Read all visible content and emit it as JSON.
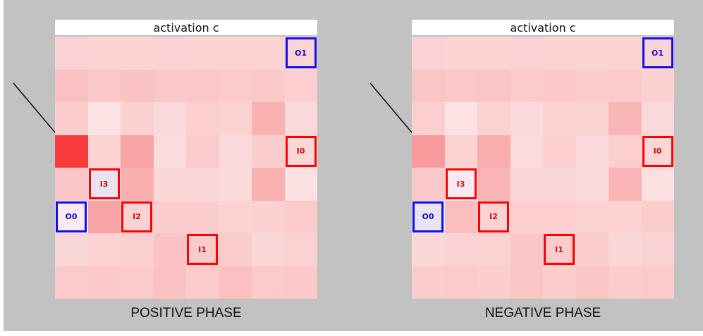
{
  "panels": [
    {
      "id": "positive",
      "title": "activation c",
      "phase_label": "POSITIVE PHASE",
      "cells": [
        [
          "#fbd2d3",
          "#fbd3d3",
          "#fbd3d3",
          "#fbd2d3",
          "#fbd3d3",
          "#fbd3d3",
          "#fbd3d3",
          "#fbd4d4"
        ],
        [
          "#fbc1c2",
          "#fbc7c8",
          "#fbc3c4",
          "#fbc8c9",
          "#fbc7c8",
          "#fbcbcb",
          "#fbc8c8",
          "#fbcfcf"
        ],
        [
          "#fbcdcd",
          "#fce3e3",
          "#fbd0d1",
          "#fbdadb",
          "#fbcfd0",
          "#fbd1d2",
          "#fab1b2",
          "#fbd9da"
        ],
        [
          "#f83b3b",
          "#fbd3d3",
          "#f9a4a5",
          "#fbdbdb",
          "#fbcccd",
          "#fbd9da",
          "#fbcdcd",
          "#fbd6d6"
        ],
        [
          "#fbc6c7",
          "#e9e3f2",
          "#f9afb0",
          "#fbd7d8",
          "#fbd7d7",
          "#fbdada",
          "#f9b0b1",
          "#fbe1e1"
        ],
        [
          "#f8eaf0",
          "#f9a5a6",
          "#fbd2d3",
          "#fbcdcd",
          "#fbcdce",
          "#fbd2d2",
          "#fbd0d1",
          "#fbcacb"
        ],
        [
          "#fbd8d8",
          "#fbd1d2",
          "#fbd0d1",
          "#fbc3c4",
          "#fbcaca",
          "#fbcccc",
          "#fbd6d6",
          "#fbd1d2"
        ],
        [
          "#fbcacb",
          "#fbc9c9",
          "#fbcbcc",
          "#fbc2c3",
          "#fbcbcc",
          "#fbc1c2",
          "#fbcbcc",
          "#fbc9c9"
        ]
      ],
      "boxes": [
        {
          "label": "O1",
          "kind": "output",
          "row": 0,
          "col": 7
        },
        {
          "label": "I0",
          "kind": "input",
          "row": 3,
          "col": 7
        },
        {
          "label": "I3",
          "kind": "input",
          "row": 4,
          "col": 1
        },
        {
          "label": "O0",
          "kind": "output",
          "row": 5,
          "col": 0
        },
        {
          "label": "I2",
          "kind": "input",
          "row": 5,
          "col": 2
        },
        {
          "label": "I1",
          "kind": "input",
          "row": 6,
          "col": 4
        }
      ]
    },
    {
      "id": "negative",
      "title": "activation c",
      "phase_label": "NEGATIVE PHASE",
      "cells": [
        [
          "#fbd2d3",
          "#fbd3d3",
          "#fbd3d3",
          "#fbd2d3",
          "#fbd3d3",
          "#fbd3d3",
          "#fbd3d3",
          "#fbd4d4"
        ],
        [
          "#fbc5c6",
          "#fbc8c9",
          "#fbc5c6",
          "#fbcaca",
          "#fbc9ca",
          "#fbcccc",
          "#fbcaca",
          "#fbd0d0"
        ],
        [
          "#fbcfcf",
          "#fce2e2",
          "#fbd1d2",
          "#fbdadb",
          "#fbd1d1",
          "#fbd3d3",
          "#fab6b7",
          "#fbd9da"
        ],
        [
          "#f99b9c",
          "#fbd3d3",
          "#f9adae",
          "#fbdbdb",
          "#fbcecf",
          "#fbd9da",
          "#fbcfcf",
          "#fbd6d6"
        ],
        [
          "#fbc8c9",
          "#f8eaf0",
          "#f9b5b6",
          "#fbd7d8",
          "#fbd7d7",
          "#fbdada",
          "#fab4b5",
          "#fbe0e0"
        ],
        [
          "#e9e3f2",
          "#fbbebf",
          "#fbd2d3",
          "#fbcecf",
          "#fbcecf",
          "#fbd2d2",
          "#fbd1d2",
          "#fbcccc"
        ],
        [
          "#fbd8d8",
          "#fbd2d3",
          "#fbd2d2",
          "#fbc6c7",
          "#fbcbcc",
          "#fbcdcd",
          "#fbd6d6",
          "#fbd2d3"
        ],
        [
          "#fbcccc",
          "#fbcbcc",
          "#fbcdcd",
          "#fbc5c6",
          "#fbcdcd",
          "#fbc4c5",
          "#fbcdcd",
          "#fbcbcb"
        ]
      ],
      "boxes": [
        {
          "label": "O1",
          "kind": "output",
          "row": 0,
          "col": 7
        },
        {
          "label": "I0",
          "kind": "input",
          "row": 3,
          "col": 7
        },
        {
          "label": "I3",
          "kind": "input",
          "row": 4,
          "col": 1
        },
        {
          "label": "O0",
          "kind": "output",
          "row": 5,
          "col": 0
        },
        {
          "label": "I2",
          "kind": "input",
          "row": 5,
          "col": 2
        },
        {
          "label": "I1",
          "kind": "input",
          "row": 6,
          "col": 4
        }
      ]
    }
  ]
}
